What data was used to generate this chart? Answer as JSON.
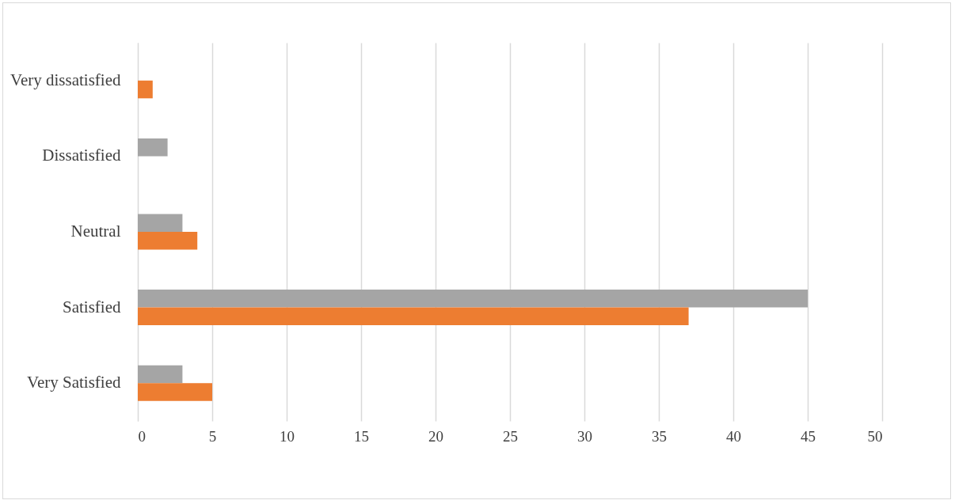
{
  "chart_data": {
    "type": "bar",
    "orientation": "horizontal",
    "categories": [
      "Very dissatisfied",
      "Dissatisfied",
      "Neutral",
      "Satisfied",
      "Very Satisfied"
    ],
    "series": [
      {
        "color": "#a5a5a5",
        "values": [
          0,
          2,
          3,
          45,
          3
        ]
      },
      {
        "color": "#ed7d31",
        "values": [
          1,
          0,
          4,
          37,
          5
        ]
      }
    ],
    "xlim": [
      0,
      50
    ],
    "xticks": [
      0,
      5,
      10,
      15,
      20,
      25,
      30,
      35,
      40,
      45,
      50
    ],
    "grid": "x"
  }
}
